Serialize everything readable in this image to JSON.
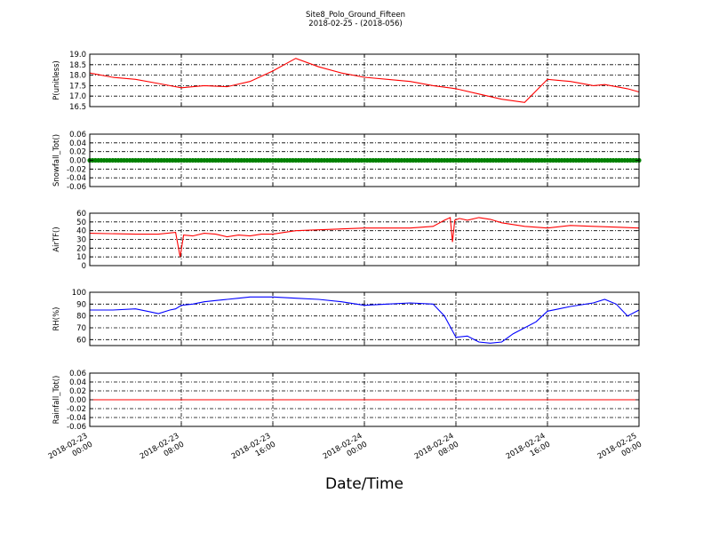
{
  "title": "Site8_Polo_Ground_Fifteen",
  "subtitle": "2018-02-25 - (2018-056)",
  "colors": {
    "red": "#ff0000",
    "green": "#008000",
    "blue": "#0000ff"
  },
  "chart_data": [
    {
      "type": "line",
      "ylabel": "P(unitless)",
      "ylim": [
        16.5,
        19.0
      ],
      "yticks": [
        "19.0",
        "18.5",
        "18.0",
        "17.5",
        "17.0",
        "16.5"
      ],
      "ytick_values": [
        19.0,
        18.5,
        18.0,
        17.5,
        17.0,
        16.5
      ],
      "color": "#ff0000",
      "x_hours": [
        0,
        2,
        4,
        6,
        8,
        10,
        12,
        14,
        16,
        18,
        20,
        22,
        24,
        26,
        28,
        30,
        32,
        34,
        36,
        38,
        40,
        42,
        43.5,
        44,
        45,
        46,
        47,
        48
      ],
      "values": [
        18.1,
        17.9,
        17.8,
        17.6,
        17.4,
        17.5,
        17.45,
        17.7,
        18.2,
        18.8,
        18.4,
        18.1,
        17.9,
        17.8,
        17.7,
        17.5,
        17.35,
        17.1,
        16.85,
        16.7,
        17.8,
        17.7,
        17.55,
        17.5,
        17.55,
        17.45,
        17.35,
        17.2
      ],
      "grid": true
    },
    {
      "type": "line",
      "ylabel": "Snowfall_Tot()",
      "ylim": [
        -0.06,
        0.06
      ],
      "yticks": [
        "0.06",
        "0.04",
        "0.02",
        "0.00",
        "-0.02",
        "-0.04",
        "-0.06"
      ],
      "ytick_values": [
        0.06,
        0.04,
        0.02,
        0.0,
        -0.02,
        -0.04,
        -0.06
      ],
      "color": "#008000",
      "x_hours": [
        0,
        48
      ],
      "values": [
        0,
        0
      ],
      "marker": "dot",
      "grid": true
    },
    {
      "type": "line",
      "ylabel": "AirTF()",
      "ylim": [
        0,
        60
      ],
      "yticks": [
        "60",
        "50",
        "40",
        "30",
        "20",
        "10",
        "0"
      ],
      "ytick_values": [
        60,
        50,
        40,
        30,
        20,
        10,
        0
      ],
      "color": "#ff0000",
      "x_hours": [
        0,
        4,
        6,
        7.5,
        7.9,
        8.2,
        9,
        10,
        11,
        12,
        13,
        14,
        15,
        16,
        17,
        18,
        20,
        22,
        24,
        26,
        28,
        30,
        31,
        31.5,
        31.7,
        31.9,
        32.3,
        33,
        34,
        35,
        36,
        37,
        38,
        40,
        42,
        44,
        46,
        48
      ],
      "values": [
        37,
        36,
        36,
        38,
        10,
        35,
        34,
        37,
        36,
        33,
        35,
        34,
        36,
        36,
        38,
        40,
        41,
        42,
        43,
        43,
        43,
        45,
        52,
        55,
        27,
        52,
        54,
        52,
        55,
        53,
        49,
        47,
        45,
        43,
        46,
        45,
        44,
        43
      ],
      "grid": true
    },
    {
      "type": "line",
      "ylabel": "RH(%)",
      "ylim": [
        55,
        100
      ],
      "yticks": [
        "100",
        "90",
        "80",
        "70",
        "60"
      ],
      "ytick_values": [
        100,
        90,
        80,
        70,
        60
      ],
      "color": "#0000ff",
      "x_hours": [
        0,
        2,
        4,
        5,
        6,
        7,
        7.5,
        8,
        9,
        10,
        11,
        12,
        13,
        14,
        15,
        16,
        18,
        20,
        22,
        24,
        26,
        28,
        30,
        31,
        32,
        33,
        34,
        35,
        36,
        37,
        38,
        39,
        40,
        41,
        42,
        44,
        45,
        46,
        47,
        48
      ],
      "values": [
        85,
        85,
        86,
        84,
        82,
        85,
        86,
        89,
        90,
        92,
        93,
        94,
        95,
        96,
        96,
        96,
        95,
        94,
        92,
        89,
        90,
        91,
        90,
        80,
        62,
        63,
        58,
        57,
        58,
        65,
        70,
        75,
        84,
        86,
        88,
        91,
        94,
        90,
        80,
        85
      ],
      "grid": true
    },
    {
      "type": "line",
      "ylabel": "Rainfall_Tot()",
      "ylim": [
        -0.06,
        0.06
      ],
      "yticks": [
        "0.06",
        "0.04",
        "0.02",
        "0.00",
        "-0.02",
        "-0.04",
        "-0.06"
      ],
      "ytick_values": [
        0.06,
        0.04,
        0.02,
        0.0,
        -0.02,
        -0.04,
        -0.06
      ],
      "color": "#ff0000",
      "x_hours": [
        0,
        48
      ],
      "values": [
        0,
        0
      ],
      "grid": true
    }
  ],
  "x_axis": {
    "xlabel": "Date/Time",
    "xlim_hours": [
      0,
      48
    ],
    "tick_hours": [
      0,
      8,
      16,
      24,
      32,
      40,
      48
    ],
    "tick_labels": [
      [
        "2018-02-23",
        "00:00"
      ],
      [
        "2018-02-23",
        "08:00"
      ],
      [
        "2018-02-23",
        "16:00"
      ],
      [
        "2018-02-24",
        "00:00"
      ],
      [
        "2018-02-24",
        "08:00"
      ],
      [
        "2018-02-24",
        "16:00"
      ],
      [
        "2018-02-25",
        "00:00"
      ]
    ]
  }
}
